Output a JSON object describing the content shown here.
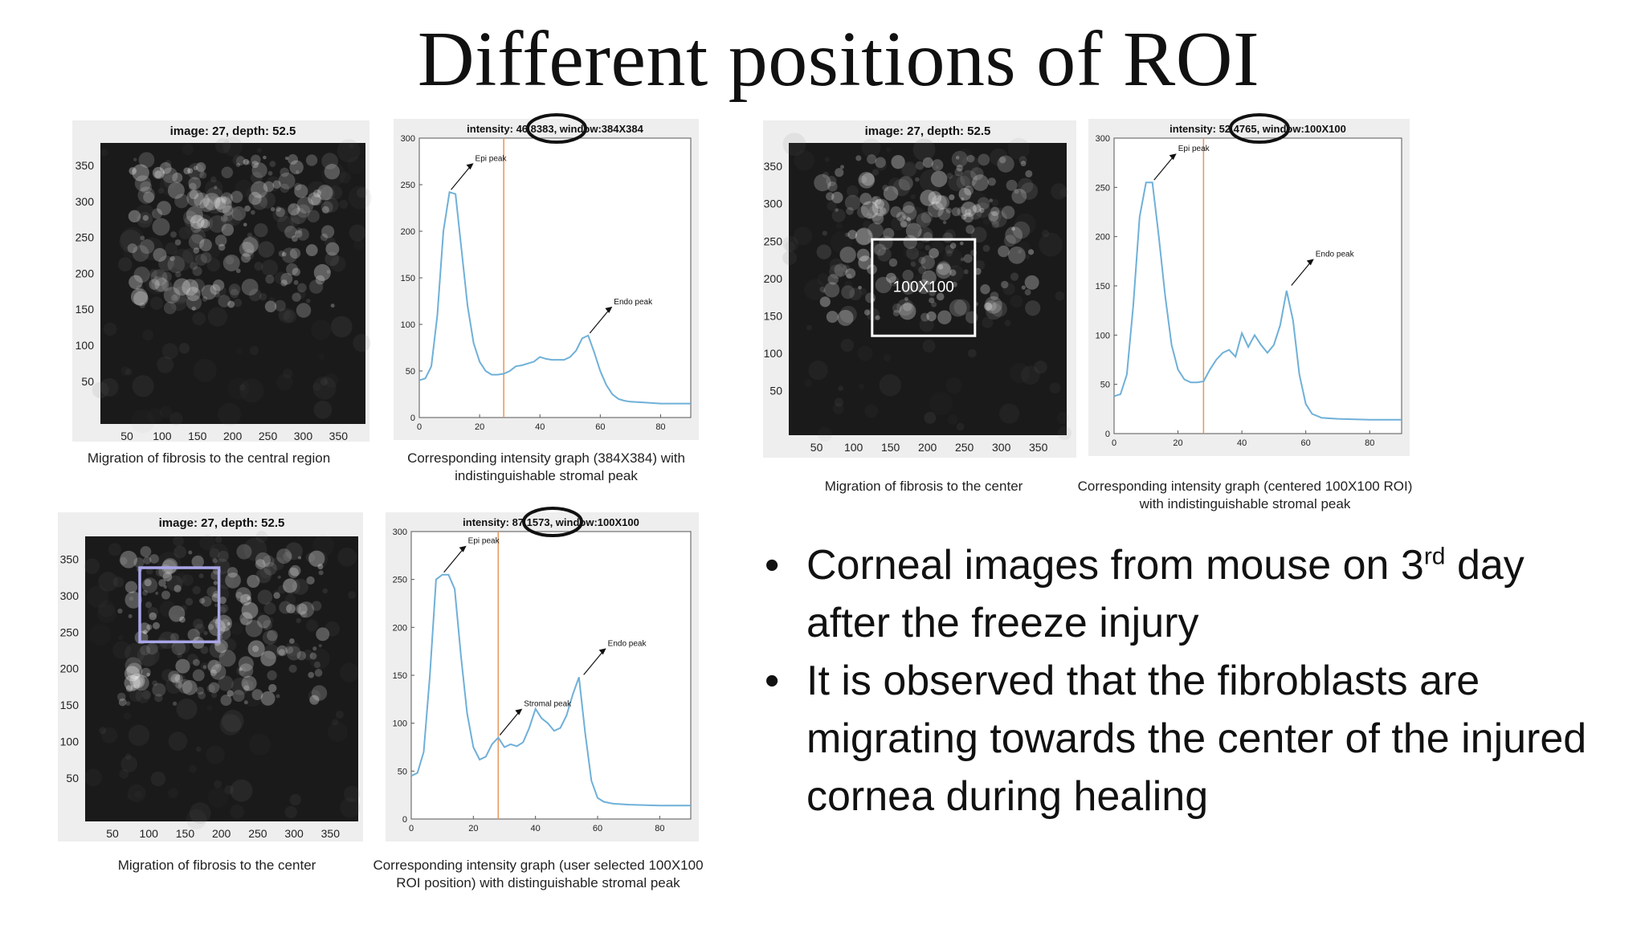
{
  "title": "Different positions of ROI",
  "images": [
    {
      "header": "image: 27, depth: 52.5",
      "caption": "Migration of fibrosis to the central region",
      "y_ticks": [
        "350",
        "300",
        "250",
        "200",
        "150",
        "100",
        "50"
      ],
      "x_ticks": [
        "50",
        "100",
        "150",
        "200",
        "250",
        "300",
        "350"
      ]
    },
    {
      "header": "image: 27, depth: 52.5",
      "caption": "Migration of fibrosis to the center",
      "roi_label": "100X100",
      "y_ticks": [
        "350",
        "300",
        "250",
        "200",
        "150",
        "100",
        "50"
      ],
      "x_ticks": [
        "50",
        "100",
        "150",
        "200",
        "250",
        "300",
        "350"
      ]
    },
    {
      "header": "image: 27, depth: 52.5",
      "caption": "Migration of fibrosis to the center",
      "y_ticks": [
        "350",
        "300",
        "250",
        "200",
        "150",
        "100",
        "50"
      ],
      "x_ticks": [
        "50",
        "100",
        "150",
        "200",
        "250",
        "300",
        "350"
      ]
    }
  ],
  "graphs": [
    {
      "header_prefix": "intensity",
      "header_value": "46.8383",
      "header_suffix": "window:384X384",
      "caption_line1": "Corresponding intensity graph (384X384) with",
      "caption_line2": "indistinguishable stromal peak",
      "annotations": [
        "Epi peak",
        "Endo peak"
      ]
    },
    {
      "header_prefix": "intensity",
      "header_value": "52.4765",
      "header_suffix": "window:100X100",
      "caption_line1": "Corresponding intensity graph (centered 100X100 ROI)",
      "caption_line2": "with indistinguishable stromal peak",
      "annotations": [
        "Epi peak",
        "Endo peak"
      ]
    },
    {
      "header_prefix": "intensity",
      "header_value": "87.1573",
      "header_suffix": "window:100X100",
      "caption_line1": "Corresponding intensity graph (user selected 100X100",
      "caption_line2": "ROI position) with distinguishable stromal peak",
      "annotations": [
        "Epi peak",
        "Stromal peak",
        "Endo peak"
      ]
    }
  ],
  "chart_data": [
    {
      "type": "line",
      "title": "intensity: 46.8383, window:384X384",
      "xlim": [
        0,
        90
      ],
      "ylim": [
        0,
        300
      ],
      "x_ticks": [
        0,
        20,
        40,
        60,
        80
      ],
      "y_ticks": [
        0,
        50,
        100,
        150,
        200,
        250,
        300
      ],
      "vline_x": 28,
      "series": [
        {
          "x": [
            0,
            2,
            4,
            6,
            8,
            10,
            12,
            14,
            16,
            18,
            20,
            22,
            24,
            26,
            28,
            30,
            32,
            34,
            36,
            38,
            40,
            42,
            44,
            46,
            48,
            50,
            52,
            54,
            56,
            58,
            60,
            62,
            64,
            66,
            68,
            70,
            75,
            80,
            85,
            90
          ],
          "y": [
            40,
            42,
            55,
            110,
            200,
            242,
            240,
            180,
            120,
            80,
            60,
            50,
            46,
            46,
            47,
            50,
            55,
            56,
            58,
            60,
            65,
            63,
            62,
            62,
            62,
            65,
            72,
            85,
            88,
            70,
            50,
            35,
            25,
            20,
            18,
            17,
            16,
            15,
            15,
            15
          ]
        }
      ],
      "annotations": [
        {
          "text": "Epi peak",
          "x": 10,
          "y": 242
        },
        {
          "text": "Endo peak",
          "x": 56,
          "y": 88
        }
      ]
    },
    {
      "type": "line",
      "title": "intensity: 52.4765, window:100X100",
      "xlim": [
        0,
        90
      ],
      "ylim": [
        0,
        300
      ],
      "x_ticks": [
        0,
        20,
        40,
        60,
        80
      ],
      "y_ticks": [
        0,
        50,
        100,
        150,
        200,
        250,
        300
      ],
      "vline_x": 28,
      "series": [
        {
          "x": [
            0,
            2,
            4,
            6,
            8,
            10,
            12,
            14,
            16,
            18,
            20,
            22,
            24,
            26,
            28,
            30,
            32,
            34,
            36,
            38,
            40,
            42,
            44,
            46,
            48,
            50,
            52,
            54,
            56,
            58,
            60,
            62,
            65,
            70,
            80,
            90
          ],
          "y": [
            38,
            40,
            60,
            130,
            220,
            255,
            255,
            200,
            140,
            90,
            65,
            55,
            52,
            52,
            53,
            65,
            75,
            82,
            85,
            78,
            102,
            88,
            100,
            90,
            82,
            90,
            110,
            145,
            115,
            60,
            30,
            20,
            16,
            15,
            14,
            14
          ]
        }
      ],
      "annotations": [
        {
          "text": "Epi peak",
          "x": 12,
          "y": 255
        },
        {
          "text": "Endo peak",
          "x": 55,
          "y": 148
        }
      ]
    },
    {
      "type": "line",
      "title": "intensity: 87.1573, window:100X100",
      "xlim": [
        0,
        90
      ],
      "ylim": [
        0,
        300
      ],
      "x_ticks": [
        0,
        20,
        40,
        60,
        80
      ],
      "y_ticks": [
        0,
        50,
        100,
        150,
        200,
        250,
        300
      ],
      "vline_x": 28,
      "series": [
        {
          "x": [
            0,
            2,
            4,
            6,
            8,
            10,
            12,
            14,
            16,
            18,
            20,
            22,
            24,
            26,
            28,
            30,
            32,
            34,
            36,
            38,
            40,
            42,
            44,
            46,
            48,
            50,
            52,
            54,
            56,
            58,
            60,
            62,
            65,
            70,
            80,
            90
          ],
          "y": [
            45,
            48,
            70,
            150,
            250,
            255,
            255,
            240,
            170,
            110,
            75,
            62,
            65,
            78,
            85,
            75,
            78,
            76,
            80,
            95,
            115,
            105,
            100,
            92,
            95,
            108,
            130,
            148,
            90,
            40,
            22,
            18,
            16,
            15,
            14,
            14
          ]
        }
      ],
      "annotations": [
        {
          "text": "Epi peak",
          "x": 10,
          "y": 255
        },
        {
          "text": "Stromal peak",
          "x": 28,
          "y": 85
        },
        {
          "text": "Endo peak",
          "x": 55,
          "y": 148
        }
      ]
    }
  ],
  "bullets": [
    {
      "before": "Corneal images from mouse on 3",
      "sup": "rd",
      "after": " day after the freeze injury"
    },
    {
      "before": "It is observed that the fibroblasts are migrating towards the center of the injured cornea during healing",
      "sup": "",
      "after": ""
    }
  ],
  "colors": {
    "line": "#6fb0d8",
    "vline": "#e8955a",
    "roi_box_1": "#ffffff",
    "roi_box_2": "#a9a6e8",
    "highlight": "#111111"
  }
}
